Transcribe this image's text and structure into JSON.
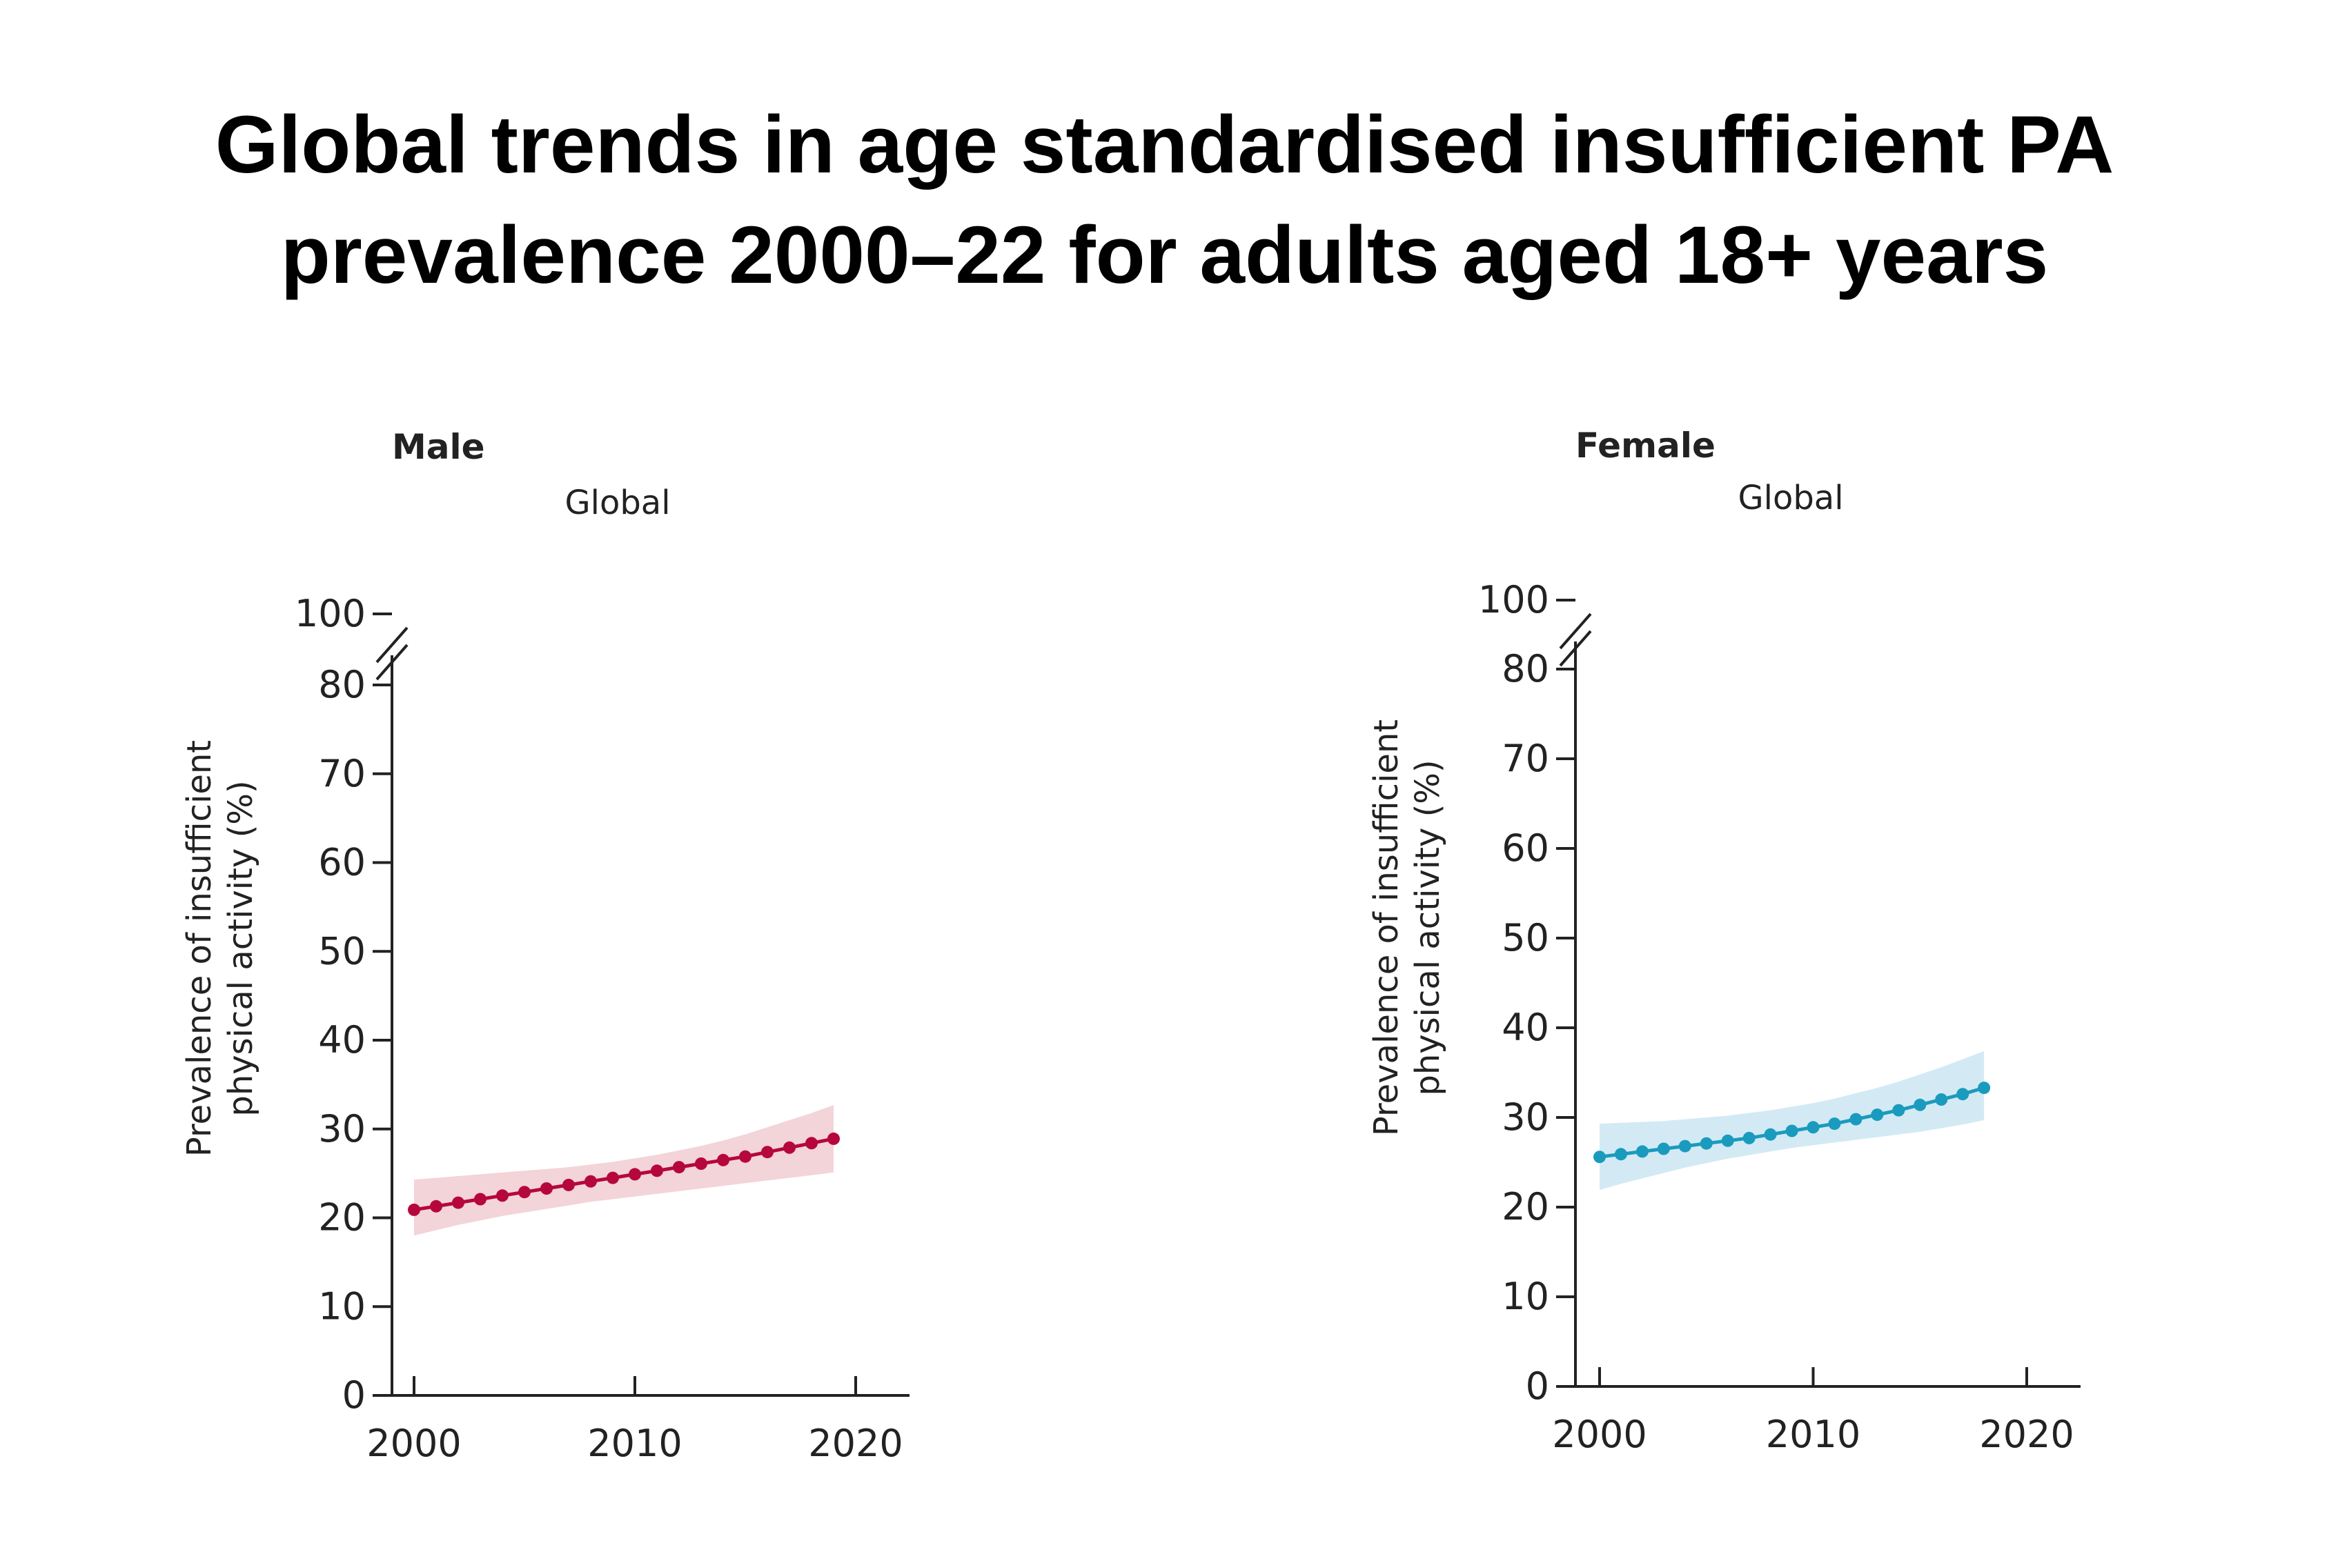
{
  "title": {
    "line1": "Global trends in age standardised insufficient PA",
    "line2": "prevalence 2000–22 for adults aged 18+ years"
  },
  "chart_data": [
    {
      "type": "line",
      "panel": "Male",
      "subtitle": "Global",
      "ylabel_line1": "Prevalence of insufficient",
      "ylabel_line2": "physical activity (%)",
      "xlim": [
        1999,
        2022.5
      ],
      "ylim": [
        0,
        100
      ],
      "y_axis_break": [
        80,
        100
      ],
      "x_ticks": [
        2000,
        2010,
        2020
      ],
      "y_ticks": [
        0,
        10,
        20,
        30,
        40,
        50,
        60,
        70,
        80,
        100
      ],
      "color": "#b5073e",
      "band_color": "#f3d4d8",
      "series": [
        {
          "x": [
            2000,
            2001,
            2002,
            2003,
            2004,
            2005,
            2006,
            2007,
            2008,
            2009,
            2010,
            2011,
            2012,
            2013,
            2014,
            2015,
            2016,
            2017,
            2018,
            2019
          ],
          "values": [
            20.9,
            21.3,
            21.7,
            22.1,
            22.5,
            22.9,
            23.3,
            23.7,
            24.1,
            24.5,
            24.9,
            25.3,
            25.7,
            26.1,
            26.5,
            26.9,
            27.4,
            27.9,
            28.4,
            28.9
          ],
          "lower": [
            18.0,
            18.6,
            19.2,
            19.7,
            20.2,
            20.6,
            21.0,
            21.4,
            21.8,
            22.1,
            22.4,
            22.7,
            23.0,
            23.3,
            23.6,
            23.9,
            24.2,
            24.5,
            24.8,
            25.1
          ],
          "upper": [
            24.3,
            24.5,
            24.7,
            24.9,
            25.1,
            25.3,
            25.5,
            25.7,
            26.0,
            26.3,
            26.7,
            27.1,
            27.6,
            28.1,
            28.7,
            29.4,
            30.2,
            31.0,
            31.8,
            32.7
          ]
        }
      ]
    },
    {
      "type": "line",
      "panel": "Female",
      "subtitle": "Global",
      "ylabel_line1": "Prevalence of insufficient",
      "ylabel_line2": "physical activity (%)",
      "xlim": [
        1998.8,
        2022.3
      ],
      "ylim": [
        0,
        100
      ],
      "y_axis_break": [
        80,
        100
      ],
      "x_ticks": [
        2000,
        2010,
        2020
      ],
      "y_ticks": [
        0,
        10,
        20,
        30,
        40,
        50,
        60,
        70,
        80,
        100
      ],
      "color": "#1a9bbd",
      "band_color": "#d3eaf5",
      "series": [
        {
          "x": [
            2000,
            2001,
            2002,
            2003,
            2004,
            2005,
            2006,
            2007,
            2008,
            2009,
            2010,
            2011,
            2012,
            2013,
            2014,
            2015,
            2016,
            2017,
            2018
          ],
          "values": [
            25.6,
            25.9,
            26.2,
            26.5,
            26.8,
            27.1,
            27.4,
            27.7,
            28.1,
            28.5,
            28.9,
            29.3,
            29.8,
            30.3,
            30.8,
            31.4,
            32.0,
            32.6,
            33.3
          ],
          "lower": [
            21.9,
            22.6,
            23.2,
            23.8,
            24.4,
            24.9,
            25.4,
            25.8,
            26.2,
            26.6,
            26.9,
            27.2,
            27.5,
            27.8,
            28.1,
            28.4,
            28.8,
            29.2,
            29.7
          ],
          "upper": [
            29.3,
            29.4,
            29.5,
            29.6,
            29.8,
            30.0,
            30.2,
            30.5,
            30.8,
            31.2,
            31.6,
            32.1,
            32.7,
            33.3,
            34.0,
            34.8,
            35.6,
            36.5,
            37.4
          ]
        }
      ]
    }
  ]
}
